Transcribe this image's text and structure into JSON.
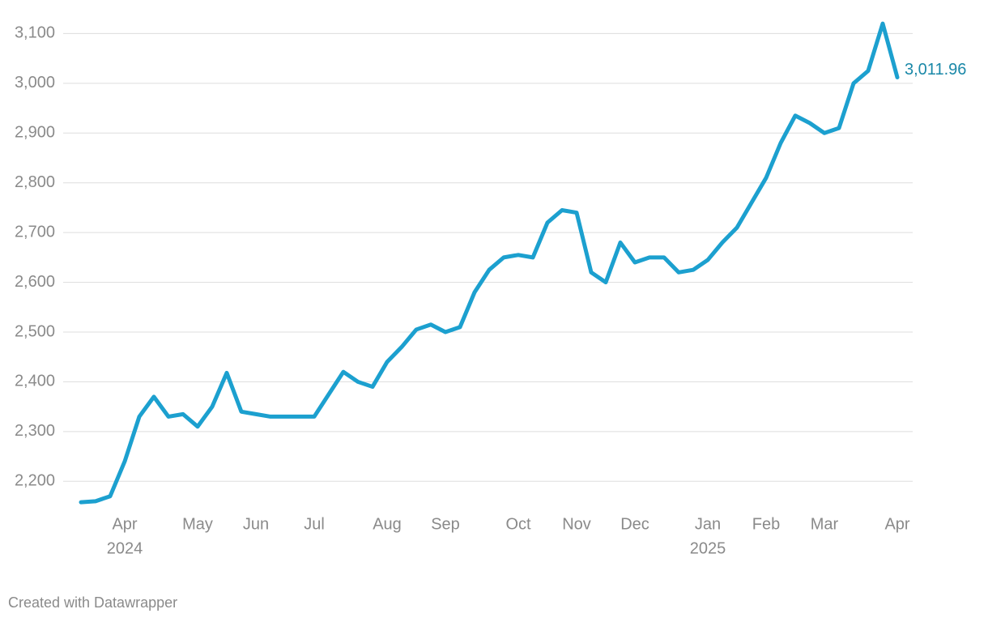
{
  "chart_data": {
    "type": "line",
    "categories": [
      null,
      null,
      null,
      "Apr",
      null,
      null,
      null,
      null,
      "May",
      null,
      null,
      null,
      "Jun",
      null,
      null,
      null,
      "Jul",
      null,
      null,
      null,
      null,
      "Aug",
      null,
      null,
      null,
      "Sep",
      null,
      null,
      null,
      null,
      "Oct",
      null,
      null,
      null,
      "Nov",
      null,
      null,
      null,
      "Dec",
      null,
      null,
      null,
      null,
      "Jan",
      null,
      null,
      null,
      "Feb",
      null,
      null,
      null,
      "Mar",
      null,
      null,
      null,
      null,
      "Apr"
    ],
    "years": [
      null,
      null,
      null,
      "2024",
      null,
      null,
      null,
      null,
      null,
      null,
      null,
      null,
      null,
      null,
      null,
      null,
      null,
      null,
      null,
      null,
      null,
      null,
      null,
      null,
      null,
      null,
      null,
      null,
      null,
      null,
      null,
      null,
      null,
      null,
      null,
      null,
      null,
      null,
      null,
      null,
      null,
      null,
      null,
      "2025",
      null,
      null,
      null,
      null,
      null,
      null,
      null,
      null,
      null,
      null,
      null,
      null,
      null
    ],
    "series": [
      {
        "color": "#1ca0cf",
        "values": [
          2158,
          2160,
          2170,
          2240,
          2330,
          2370,
          2330,
          2335,
          2310,
          2350,
          2418,
          2340,
          2335,
          2330,
          2330,
          2330,
          2330,
          2375,
          2420,
          2400,
          2390,
          2440,
          2470,
          2505,
          2515,
          2500,
          2510,
          2580,
          2625,
          2650,
          2655,
          2650,
          2720,
          2745,
          2740,
          2620,
          2600,
          2680,
          2640,
          2650,
          2650,
          2620,
          2625,
          2645,
          2680,
          2710,
          2760,
          2810,
          2880,
          2935,
          2920,
          2900,
          2910,
          3000,
          3025,
          3120,
          3011.96
        ],
        "value_labels": [
          null,
          null,
          null,
          null,
          null,
          null,
          null,
          null,
          null,
          null,
          null,
          null,
          null,
          null,
          null,
          null,
          null,
          null,
          null,
          null,
          null,
          null,
          null,
          null,
          null,
          null,
          null,
          null,
          null,
          null,
          null,
          null,
          null,
          null,
          null,
          null,
          null,
          null,
          null,
          null,
          null,
          null,
          null,
          null,
          null,
          null,
          null,
          null,
          null,
          null,
          null,
          null,
          null,
          null,
          null,
          null,
          "3,011.96"
        ]
      }
    ],
    "ylim": [
      2150,
      3130
    ],
    "yticks": [
      {
        "value": 2200,
        "label": "2,200"
      },
      {
        "value": 2300,
        "label": "2,300"
      },
      {
        "value": 2400,
        "label": "2,400"
      },
      {
        "value": 2500,
        "label": "2,500"
      },
      {
        "value": 2600,
        "label": "2,600"
      },
      {
        "value": 2700,
        "label": "2,700"
      },
      {
        "value": 2800,
        "label": "2,800"
      },
      {
        "value": 2900,
        "label": "2,900"
      },
      {
        "value": 3000,
        "label": "3,000"
      },
      {
        "value": 3100,
        "label": "3,100"
      }
    ],
    "grid": true,
    "credit": "Created with Datawrapper"
  }
}
